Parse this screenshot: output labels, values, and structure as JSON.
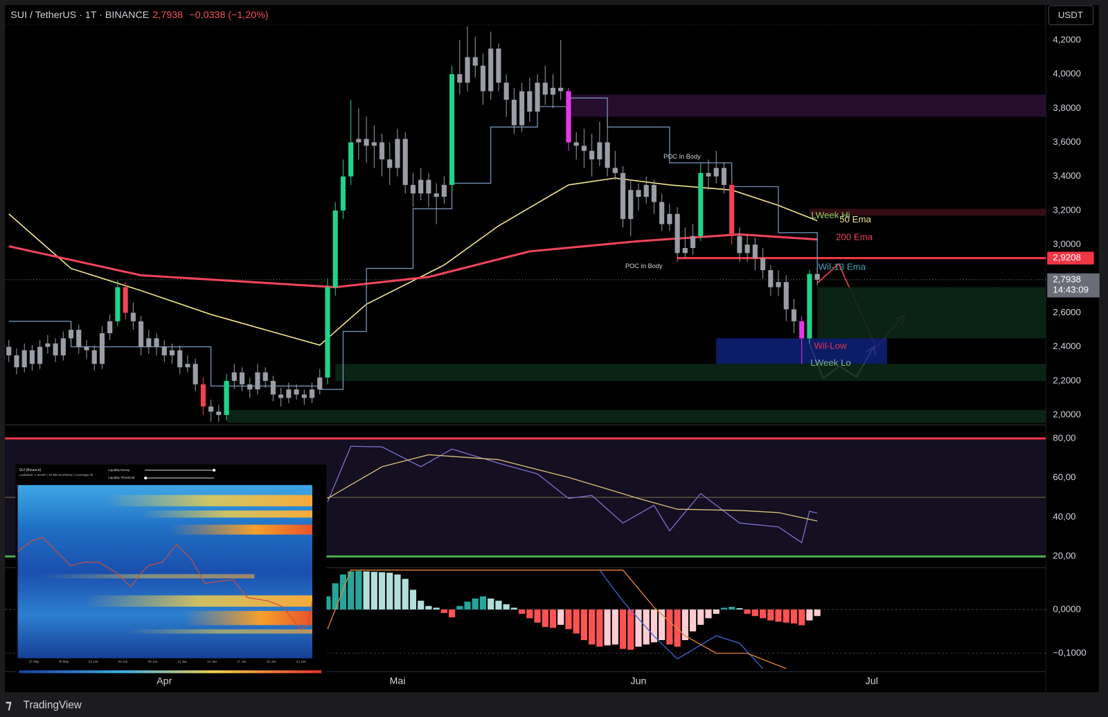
{
  "header": {
    "symbol": "SUI / TetherUS · 1T · BINANCE",
    "change": "−0,0338 (−1,20%)",
    "currency": "USDT",
    "brand": "TradingView"
  },
  "chart_data": {
    "type": "candlestick",
    "xlim": [
      -0.5,
      133.4
    ],
    "xticks": [
      {
        "value": 20,
        "label": "Apr"
      },
      {
        "value": 50,
        "label": "Mai"
      },
      {
        "value": 81,
        "label": "Jun"
      },
      {
        "value": 111,
        "label": "Jul"
      }
    ],
    "ylim": [
      1.954,
      4.29
    ],
    "yticks": [
      {
        "value": 2.0,
        "label": "2,0000"
      },
      {
        "value": 2.2,
        "label": "2,2000"
      },
      {
        "value": 2.4,
        "label": "2,4000"
      },
      {
        "value": 2.6,
        "label": "2,6000"
      },
      {
        "value": 2.8,
        "label": "2,8000"
      },
      {
        "value": 3.0,
        "label": "3,0000"
      },
      {
        "value": 3.2,
        "label": "3,2000"
      },
      {
        "value": 3.4,
        "label": "3,4000"
      },
      {
        "value": 3.6,
        "label": "3,6000"
      },
      {
        "value": 3.8,
        "label": "3,8000"
      },
      {
        "value": 4.0,
        "label": "4,0000"
      },
      {
        "value": 4.2,
        "label": "4,2000"
      }
    ],
    "ohlc": [
      [
        2.4,
        2.44,
        2.31,
        2.35
      ],
      [
        2.35,
        2.39,
        2.24,
        2.28
      ],
      [
        2.28,
        2.42,
        2.25,
        2.38
      ],
      [
        2.38,
        2.41,
        2.26,
        2.3
      ],
      [
        2.3,
        2.44,
        2.27,
        2.4
      ],
      [
        2.4,
        2.47,
        2.36,
        2.42
      ],
      [
        2.42,
        2.45,
        2.31,
        2.35
      ],
      [
        2.35,
        2.49,
        2.32,
        2.45
      ],
      [
        2.45,
        2.55,
        2.41,
        2.5
      ],
      [
        2.5,
        2.53,
        2.36,
        2.4
      ],
      [
        2.4,
        2.44,
        2.33,
        2.38
      ],
      [
        2.38,
        2.41,
        2.26,
        2.3
      ],
      [
        2.3,
        2.52,
        2.27,
        2.48
      ],
      [
        2.48,
        2.59,
        2.44,
        2.55
      ],
      [
        2.55,
        2.79,
        2.52,
        2.75
      ],
      [
        2.75,
        2.78,
        2.56,
        2.6
      ],
      [
        2.6,
        2.66,
        2.5,
        2.55
      ],
      [
        2.55,
        2.58,
        2.35,
        2.4
      ],
      [
        2.4,
        2.5,
        2.36,
        2.45
      ],
      [
        2.45,
        2.48,
        2.35,
        2.4
      ],
      [
        2.4,
        2.44,
        2.31,
        2.35
      ],
      [
        2.35,
        2.42,
        2.3,
        2.38
      ],
      [
        2.38,
        2.41,
        2.24,
        2.28
      ],
      [
        2.28,
        2.35,
        2.25,
        2.3
      ],
      [
        2.3,
        2.33,
        2.14,
        2.18
      ],
      [
        2.18,
        2.22,
        2.0,
        2.05
      ],
      [
        2.05,
        2.09,
        1.96,
        2.02
      ],
      [
        2.02,
        2.06,
        1.96,
        2.0
      ],
      [
        2.0,
        2.24,
        1.97,
        2.2
      ],
      [
        2.2,
        2.3,
        2.15,
        2.25
      ],
      [
        2.25,
        2.28,
        2.14,
        2.18
      ],
      [
        2.18,
        2.22,
        2.1,
        2.15
      ],
      [
        2.15,
        2.3,
        2.12,
        2.25
      ],
      [
        2.25,
        2.28,
        2.16,
        2.2
      ],
      [
        2.2,
        2.23,
        2.08,
        2.12
      ],
      [
        2.12,
        2.16,
        2.05,
        2.1
      ],
      [
        2.1,
        2.19,
        2.07,
        2.15
      ],
      [
        2.15,
        2.18,
        2.09,
        2.12
      ],
      [
        2.12,
        2.15,
        2.06,
        2.1
      ],
      [
        2.1,
        2.19,
        2.07,
        2.15
      ],
      [
        2.15,
        2.27,
        2.12,
        2.22
      ],
      [
        2.22,
        2.8,
        2.18,
        2.75
      ],
      [
        2.75,
        3.25,
        2.7,
        3.2
      ],
      [
        3.2,
        3.5,
        3.15,
        3.4
      ],
      [
        3.4,
        3.85,
        3.35,
        3.6
      ],
      [
        3.6,
        3.8,
        3.5,
        3.62
      ],
      [
        3.62,
        3.75,
        3.48,
        3.58
      ],
      [
        3.58,
        3.7,
        3.45,
        3.6
      ],
      [
        3.6,
        3.65,
        3.4,
        3.5
      ],
      [
        3.5,
        3.6,
        3.35,
        3.45
      ],
      [
        3.45,
        3.68,
        3.4,
        3.62
      ],
      [
        3.62,
        3.66,
        3.3,
        3.35
      ],
      [
        3.35,
        3.42,
        3.22,
        3.3
      ],
      [
        3.3,
        3.45,
        3.26,
        3.38
      ],
      [
        3.38,
        3.42,
        3.22,
        3.3
      ],
      [
        3.3,
        3.36,
        3.12,
        3.28
      ],
      [
        3.28,
        3.4,
        3.24,
        3.35
      ],
      [
        3.35,
        4.05,
        3.32,
        4.0
      ],
      [
        4.0,
        4.2,
        3.88,
        3.95
      ],
      [
        3.95,
        4.28,
        3.9,
        4.1
      ],
      [
        4.1,
        4.22,
        3.98,
        4.05
      ],
      [
        4.05,
        4.12,
        3.82,
        3.9
      ],
      [
        3.9,
        4.25,
        3.85,
        4.15
      ],
      [
        4.15,
        4.18,
        3.9,
        3.95
      ],
      [
        3.95,
        4.0,
        3.75,
        3.85
      ],
      [
        3.85,
        3.92,
        3.65,
        3.7
      ],
      [
        3.7,
        3.95,
        3.66,
        3.9
      ],
      [
        3.9,
        3.98,
        3.72,
        3.78
      ],
      [
        3.78,
        4.0,
        3.74,
        3.95
      ],
      [
        3.95,
        4.05,
        3.82,
        3.88
      ],
      [
        3.88,
        4.0,
        3.8,
        3.92
      ],
      [
        3.92,
        4.2,
        3.85,
        3.9
      ],
      [
        3.9,
        3.92,
        3.55,
        3.6
      ],
      [
        3.6,
        3.66,
        3.5,
        3.58
      ],
      [
        3.58,
        3.68,
        3.45,
        3.55
      ],
      [
        3.55,
        3.65,
        3.4,
        3.5
      ],
      [
        3.5,
        3.72,
        3.46,
        3.6
      ],
      [
        3.6,
        3.74,
        3.4,
        3.45
      ],
      [
        3.45,
        3.55,
        3.38,
        3.42
      ],
      [
        3.42,
        3.46,
        3.1,
        3.15
      ],
      [
        3.15,
        3.38,
        3.05,
        3.32
      ],
      [
        3.32,
        3.36,
        3.2,
        3.28
      ],
      [
        3.28,
        3.4,
        3.24,
        3.35
      ],
      [
        3.35,
        3.38,
        3.18,
        3.25
      ],
      [
        3.25,
        3.3,
        3.08,
        3.12
      ],
      [
        3.12,
        3.24,
        3.08,
        3.18
      ],
      [
        3.18,
        3.22,
        2.9,
        2.95
      ],
      [
        2.95,
        3.1,
        2.92,
        2.98
      ],
      [
        2.98,
        3.12,
        2.94,
        3.05
      ],
      [
        3.05,
        3.48,
        3.02,
        3.42
      ],
      [
        3.42,
        3.5,
        3.32,
        3.4
      ],
      [
        3.4,
        3.55,
        3.36,
        3.45
      ],
      [
        3.45,
        3.48,
        3.3,
        3.35
      ],
      [
        3.35,
        3.38,
        3.0,
        3.05
      ],
      [
        3.05,
        3.1,
        2.9,
        2.95
      ],
      [
        2.95,
        3.06,
        2.9,
        3.0
      ],
      [
        3.0,
        3.04,
        2.85,
        2.92
      ],
      [
        2.92,
        2.98,
        2.8,
        2.85
      ],
      [
        2.85,
        2.88,
        2.7,
        2.75
      ],
      [
        2.75,
        2.85,
        2.7,
        2.78
      ],
      [
        2.78,
        2.82,
        2.55,
        2.62
      ],
      [
        2.62,
        2.68,
        2.48,
        2.55
      ],
      [
        2.55,
        2.58,
        2.3,
        2.45
      ],
      [
        2.45,
        2.85,
        2.42,
        2.8276
      ],
      [
        2.8276,
        2.86,
        2.76,
        2.7938
      ]
    ],
    "candle_colors": [
      "#9a9da6",
      "#9a9da6",
      "#9a9da6",
      "#9a9da6",
      "#9a9da6",
      "#9a9da6",
      "#9a9da6",
      "#9a9da6",
      "#9a9da6",
      "#9a9da6",
      "#9a9da6",
      "#9a9da6",
      "#9a9da6",
      "#9a9da6",
      "#1fd48a",
      "#f0434f",
      "#9a9da6",
      "#9a9da6",
      "#9a9da6",
      "#9a9da6",
      "#9a9da6",
      "#9a9da6",
      "#9a9da6",
      "#9a9da6",
      "#9a9da6",
      "#f0434f",
      "#9a9da6",
      "#9a9da6",
      "#1fd48a",
      "#9a9da6",
      "#9a9da6",
      "#9a9da6",
      "#9a9da6",
      "#9a9da6",
      "#9a9da6",
      "#9a9da6",
      "#9a9da6",
      "#9a9da6",
      "#9a9da6",
      "#9a9da6",
      "#9a9da6",
      "#1fd48a",
      "#1fd48a",
      "#1fd48a",
      "#1fd48a",
      "#9a9da6",
      "#9a9da6",
      "#9a9da6",
      "#9a9da6",
      "#9a9da6",
      "#9a9da6",
      "#9a9da6",
      "#9a9da6",
      "#9a9da6",
      "#9a9da6",
      "#9a9da6",
      "#9a9da6",
      "#1fd48a",
      "#9a9da6",
      "#9a9da6",
      "#9a9da6",
      "#9a9da6",
      "#9a9da6",
      "#9a9da6",
      "#9a9da6",
      "#9a9da6",
      "#9a9da6",
      "#9a9da6",
      "#9a9da6",
      "#9a9da6",
      "#9a9da6",
      "#9a9da6",
      "#e33ae8",
      "#9a9da6",
      "#9a9da6",
      "#9a9da6",
      "#9a9da6",
      "#9a9da6",
      "#9a9da6",
      "#9a9da6",
      "#9a9da6",
      "#9a9da6",
      "#9a9da6",
      "#9a9da6",
      "#9a9da6",
      "#9a9da6",
      "#9a9da6",
      "#9a9da6",
      "#9a9da6",
      "#1fd48a",
      "#9a9da6",
      "#9a9da6",
      "#9a9da6",
      "#f0434f",
      "#9a9da6",
      "#9a9da6",
      "#9a9da6",
      "#9a9da6",
      "#9a9da6",
      "#9a9da6",
      "#9a9da6",
      "#9a9da6",
      "#e33ae8",
      "#1fd48a",
      "#9a9da6"
    ],
    "last_price": {
      "value": 2.7938,
      "label": "2,7938"
    },
    "countdown": "14:43:09",
    "level": {
      "value": 2.9208,
      "label": "2,9208",
      "color": "#f23645",
      "from": 86
    },
    "zones": [
      {
        "from": 72,
        "top": 3.88,
        "bottom": 3.75,
        "color": "#2a0e33"
      },
      {
        "from": 103,
        "top": 3.21,
        "bottom": 3.17,
        "color": "#3a0e16"
      },
      {
        "from": 104,
        "top": 2.75,
        "bottom": 2.45,
        "color": "#0b2716"
      },
      {
        "from": 91,
        "to": 113,
        "top": 2.45,
        "bottom": 2.3,
        "color": "#0e1f72"
      },
      {
        "from": 42,
        "top": 2.3,
        "bottom": 2.2,
        "color": "#0b2716"
      },
      {
        "from": 28,
        "top": 2.03,
        "bottom": 1.954,
        "color": "#0b2716"
      }
    ],
    "lines": [
      {
        "name": "50 Ema",
        "color": "#f3e58a",
        "x": [
          0,
          8,
          17,
          26,
          40,
          46,
          56,
          63,
          72,
          78,
          85,
          93,
          99,
          104
        ],
        "values": [
          3.18,
          2.86,
          2.73,
          2.59,
          2.41,
          2.65,
          2.88,
          3.11,
          3.35,
          3.39,
          3.35,
          3.32,
          3.23,
          3.14
        ]
      },
      {
        "name": "200 Ema",
        "color": "#f0445a",
        "x": [
          0,
          17,
          42,
          54,
          67,
          81,
          94,
          104
        ],
        "values": [
          2.99,
          2.82,
          2.75,
          2.81,
          2.96,
          3.02,
          3.06,
          3.03
        ]
      },
      {
        "color": "#7f9cc4",
        "step": true,
        "x": [
          0,
          8,
          26,
          40,
          43,
          46,
          52,
          57,
          62,
          68,
          72,
          77,
          85,
          93,
          99,
          104
        ],
        "values": [
          2.55,
          2.4,
          2.17,
          2.15,
          2.49,
          2.86,
          3.21,
          3.36,
          3.69,
          3.81,
          3.86,
          3.69,
          3.48,
          3.34,
          3.07,
          2.84
        ]
      }
    ],
    "annotations": [
      {
        "text": "POC In Body",
        "color": "#d1d4dc"
      },
      {
        "text": "POC In Body",
        "color": "#d1d4dc"
      },
      {
        "text": "LWeek Hi",
        "color": "#8fcf6a"
      },
      {
        "text": "Wil-13 Ema",
        "color": "#3ea6c0"
      },
      {
        "text": "Wil-Low",
        "color": "#e0344f"
      },
      {
        "text": "LWeek Lo",
        "color": "#74b87a"
      }
    ],
    "rsi": {
      "ylim": [
        15.3,
        85.4
      ],
      "yticks": [
        {
          "value": 20,
          "label": "20,00"
        },
        {
          "value": 40,
          "label": "40,00"
        },
        {
          "value": 60,
          "label": "60,00"
        },
        {
          "value": 80,
          "label": "80,00"
        }
      ],
      "levels": [
        {
          "value": 80,
          "color": "#f23645"
        },
        {
          "value": 50,
          "color": "#7d7450"
        },
        {
          "value": 20,
          "color": "#4caf50"
        }
      ],
      "band_color": "#140f21",
      "series": [
        {
          "color": "#7e6fd0",
          "x": [
            41,
            44,
            48,
            53,
            57,
            63,
            68,
            72,
            75,
            79,
            83,
            85,
            89,
            94,
            99,
            102,
            103,
            104
          ],
          "values": [
            47.7,
            76,
            75.7,
            65.6,
            74.6,
            67.4,
            62,
            49.5,
            51,
            37,
            46,
            33,
            52,
            37,
            35,
            27,
            43,
            42
          ]
        },
        {
          "color": "#d9c27a",
          "x": [
            41,
            48,
            54,
            63,
            72,
            81,
            86,
            94,
            99,
            104
          ],
          "values": [
            49.5,
            65.6,
            71.7,
            69.2,
            60.2,
            49.5,
            44,
            43.4,
            42.3,
            38
          ]
        }
      ]
    },
    "macd": {
      "ylim": [
        -0.139,
        0.092
      ],
      "yticks": [
        {
          "value": 0,
          "label": "0,0000"
        },
        {
          "value": -0.1,
          "label": "−0,1000"
        }
      ],
      "palette": [
        "#26a69a",
        "#b2dfdb",
        "#ffcdd2",
        "#ff5252"
      ],
      "hist": {
        "x": [
          41,
          42,
          43,
          44,
          45,
          46,
          47,
          48,
          49,
          50,
          51,
          52,
          53,
          54,
          55,
          56,
          57,
          58,
          59,
          60,
          61,
          62,
          63,
          64,
          65,
          66,
          67,
          68,
          69,
          70,
          71,
          72,
          73,
          74,
          75,
          76,
          77,
          78,
          79,
          80,
          81,
          82,
          83,
          84,
          85,
          86,
          87,
          88,
          89,
          90,
          91,
          92,
          93,
          94,
          95,
          96,
          97,
          98,
          99,
          100,
          101,
          102,
          103,
          104
        ],
        "values": [
          0.03,
          0.06,
          0.08,
          0.087,
          0.088,
          0.087,
          0.086,
          0.085,
          0.084,
          0.08,
          0.07,
          0.045,
          0.02,
          0.008,
          0.004,
          -0.008,
          -0.018,
          0.008,
          0.018,
          0.025,
          0.03,
          0.025,
          0.02,
          0.012,
          0.004,
          -0.01,
          -0.02,
          -0.03,
          -0.04,
          -0.042,
          -0.035,
          -0.045,
          -0.055,
          -0.07,
          -0.08,
          -0.085,
          -0.082,
          -0.08,
          -0.09,
          -0.092,
          -0.085,
          -0.08,
          -0.075,
          -0.07,
          -0.08,
          -0.085,
          -0.07,
          -0.05,
          -0.035,
          -0.02,
          -0.01,
          0.004,
          0.006,
          0.003,
          -0.01,
          -0.015,
          -0.02,
          -0.025,
          -0.028,
          -0.03,
          -0.032,
          -0.036,
          -0.025,
          -0.015
        ]
      },
      "series": [
        {
          "color": "#3f63d8",
          "x": [
            76,
            79,
            83,
            86,
            91,
            94,
            97
          ],
          "values": [
            0.09,
            0.019,
            -0.061,
            -0.113,
            -0.06,
            -0.077,
            -0.135
          ]
        },
        {
          "color": "#e8863a",
          "x": [
            41,
            44,
            79,
            83,
            87,
            91,
            95,
            100
          ],
          "values": [
            -0.045,
            0.09,
            0.09,
            0.005,
            -0.06,
            -0.1,
            -0.1,
            -0.135
          ]
        }
      ]
    }
  },
  "heatmap": {
    "title": "SUI (Binance)",
    "info": "Lookback: 1 month | 15 Min timeframe | Leverage All",
    "controls": [
      "Liquidity Decay",
      "Liquidity Threshold"
    ],
    "dates": [
      "27 May",
      "30 May",
      "02 Jun",
      "05 Jun",
      "08 Jun",
      "11 Jun",
      "14 Jun",
      "17 Jun",
      "20 Jun",
      "23 Jun"
    ]
  }
}
